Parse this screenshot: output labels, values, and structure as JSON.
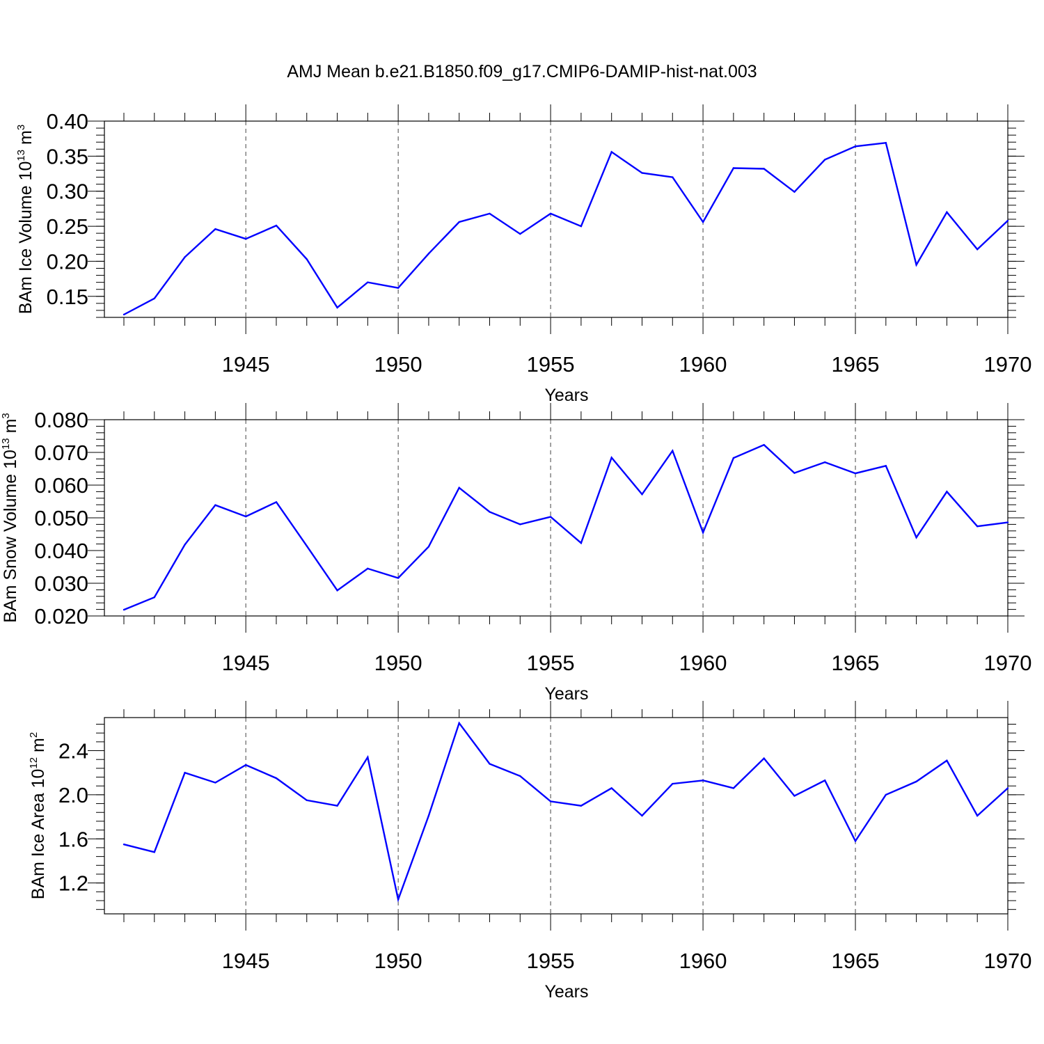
{
  "title": "AMJ Mean b.e21.B1850.f09_g17.CMIP6-DAMIP-hist-nat.003",
  "colors": {
    "series": "#0000ff",
    "axis": "#000000",
    "grid": "#444444"
  },
  "chart_data": [
    {
      "type": "line",
      "ylabel_main": "BAm Ice Volume 10",
      "ylabel_sup": "13",
      "ylabel_unit": " m",
      "ylabel_unit_sup": "3",
      "xlabel": "Years",
      "xlim": [
        1941,
        1970
      ],
      "ylim": [
        0.12,
        0.4
      ],
      "yticks": [
        0.15,
        0.2,
        0.25,
        0.3,
        0.35,
        0.4
      ],
      "yticklabels": [
        "0.15",
        "0.20",
        "0.25",
        "0.30",
        "0.35",
        "0.40"
      ],
      "yminor_step": 0.01,
      "xticks": [
        1945,
        1950,
        1955,
        1960,
        1965,
        1970
      ],
      "xticklabels": [
        "1945",
        "1950",
        "1955",
        "1960",
        "1965",
        "1970"
      ],
      "x": [
        1941,
        1942,
        1943,
        1944,
        1945,
        1946,
        1947,
        1948,
        1949,
        1950,
        1951,
        1952,
        1953,
        1954,
        1955,
        1956,
        1957,
        1958,
        1959,
        1960,
        1961,
        1962,
        1963,
        1964,
        1965,
        1966,
        1967,
        1968,
        1969,
        1970
      ],
      "series": [
        {
          "name": "BAm Ice Volume",
          "values": [
            0.124,
            0.147,
            0.206,
            0.246,
            0.232,
            0.251,
            0.203,
            0.134,
            0.17,
            0.162,
            0.211,
            0.256,
            0.268,
            0.239,
            0.268,
            0.25,
            0.356,
            0.326,
            0.32,
            0.256,
            0.333,
            0.332,
            0.299,
            0.345,
            0.364,
            0.369,
            0.195,
            0.27,
            0.217,
            0.258
          ]
        }
      ]
    },
    {
      "type": "line",
      "ylabel_main": "BAm Snow Volume 10",
      "ylabel_sup": "13",
      "ylabel_unit": " m",
      "ylabel_unit_sup": "3",
      "xlabel": "Years",
      "xlim": [
        1941,
        1970
      ],
      "ylim": [
        0.02,
        0.08
      ],
      "yticks": [
        0.02,
        0.03,
        0.04,
        0.05,
        0.06,
        0.07,
        0.08
      ],
      "yticklabels": [
        "0.020",
        "0.030",
        "0.040",
        "0.050",
        "0.060",
        "0.070",
        "0.080"
      ],
      "yminor_step": 0.002,
      "xticks": [
        1945,
        1950,
        1955,
        1960,
        1965,
        1970
      ],
      "xticklabels": [
        "1945",
        "1950",
        "1955",
        "1960",
        "1965",
        "1970"
      ],
      "x": [
        1941,
        1942,
        1943,
        1944,
        1945,
        1946,
        1947,
        1948,
        1949,
        1950,
        1951,
        1952,
        1953,
        1954,
        1955,
        1956,
        1957,
        1958,
        1959,
        1960,
        1961,
        1962,
        1963,
        1964,
        1965,
        1966,
        1967,
        1968,
        1969,
        1970
      ],
      "series": [
        {
          "name": "BAm Snow Volume",
          "values": [
            0.0219,
            0.0257,
            0.0418,
            0.0539,
            0.0504,
            0.0548,
            0.0414,
            0.0278,
            0.0345,
            0.0316,
            0.0412,
            0.0592,
            0.0518,
            0.048,
            0.0503,
            0.0423,
            0.0684,
            0.0572,
            0.0705,
            0.0455,
            0.0683,
            0.0723,
            0.0637,
            0.067,
            0.0636,
            0.0659,
            0.044,
            0.058,
            0.0474,
            0.0486
          ]
        }
      ]
    },
    {
      "type": "line",
      "ylabel_main": "BAm Ice Area 10",
      "ylabel_sup": "12",
      "ylabel_unit": " m",
      "ylabel_unit_sup": "2",
      "xlabel": "Years",
      "xlim": [
        1941,
        1970
      ],
      "ylim": [
        0.92,
        2.7
      ],
      "yticks": [
        1.2,
        1.6,
        2.0,
        2.4
      ],
      "yticklabels": [
        "1.2",
        "1.6",
        "2.0",
        "2.4"
      ],
      "yminor_step": 0.08,
      "xticks": [
        1945,
        1950,
        1955,
        1960,
        1965,
        1970
      ],
      "xticklabels": [
        "1945",
        "1950",
        "1955",
        "1960",
        "1965",
        "1970"
      ],
      "x": [
        1941,
        1942,
        1943,
        1944,
        1945,
        1946,
        1947,
        1948,
        1949,
        1950,
        1951,
        1952,
        1953,
        1954,
        1955,
        1956,
        1957,
        1958,
        1959,
        1960,
        1961,
        1962,
        1963,
        1964,
        1965,
        1966,
        1967,
        1968,
        1969,
        1970
      ],
      "series": [
        {
          "name": "BAm Ice Area",
          "values": [
            1.55,
            1.48,
            2.2,
            2.11,
            2.27,
            2.15,
            1.95,
            1.9,
            2.34,
            1.05,
            1.81,
            2.65,
            2.28,
            2.17,
            1.94,
            1.9,
            2.06,
            1.81,
            2.1,
            2.13,
            2.06,
            2.33,
            1.99,
            2.13,
            1.58,
            2.0,
            2.12,
            2.31,
            1.81,
            2.06
          ]
        }
      ]
    }
  ]
}
